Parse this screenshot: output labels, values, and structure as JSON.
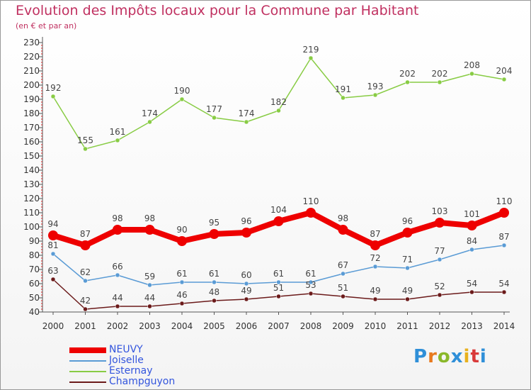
{
  "chart_data": {
    "type": "line",
    "title": "Evolution des Impôts locaux pour la Commune par Habitant",
    "subtitle": "(en € et par an)",
    "xlabel": "",
    "ylabel": "",
    "ylim": [
      40,
      230
    ],
    "yticks": [
      40,
      50,
      60,
      70,
      80,
      90,
      100,
      110,
      120,
      130,
      140,
      150,
      160,
      170,
      180,
      190,
      200,
      210,
      220,
      230
    ],
    "categories": [
      "2000",
      "2001",
      "2002",
      "2003",
      "2004",
      "2005",
      "2006",
      "2007",
      "2008",
      "2009",
      "2010",
      "2011",
      "2012",
      "2013",
      "2014"
    ],
    "series": [
      {
        "name": "NEUVY",
        "color": "#ee0000",
        "values": [
          94,
          87,
          98,
          98,
          90,
          95,
          96,
          104,
          110,
          98,
          87,
          96,
          103,
          101,
          110
        ]
      },
      {
        "name": "Joiselle",
        "color": "#5a9bd5",
        "values": [
          81,
          62,
          66,
          59,
          61,
          61,
          60,
          61,
          61,
          67,
          72,
          71,
          77,
          84,
          87
        ]
      },
      {
        "name": "Esternay",
        "color": "#88cc44",
        "values": [
          192,
          155,
          161,
          174,
          190,
          177,
          174,
          182,
          219,
          191,
          193,
          202,
          202,
          208,
          204
        ]
      },
      {
        "name": "Champguyon",
        "color": "#6b1a1a",
        "values": [
          63,
          42,
          44,
          44,
          46,
          48,
          49,
          51,
          53,
          51,
          49,
          49,
          52,
          54,
          54
        ]
      }
    ],
    "legend_position": "bottom-left",
    "grid": false
  },
  "colors": {
    "title": "#c03060",
    "legend_text": "#3355dd",
    "axis": "#555555",
    "tick_red": "#dd2222"
  },
  "logo": {
    "letters": [
      "P",
      "r",
      "o",
      "x",
      "i",
      "t",
      "i"
    ],
    "colors": [
      "#2f8fd8",
      "#e87a1e",
      "#8ab82a",
      "#2f8fd8",
      "#e8b11e",
      "#d93a3a",
      "#2f8fd8"
    ]
  }
}
